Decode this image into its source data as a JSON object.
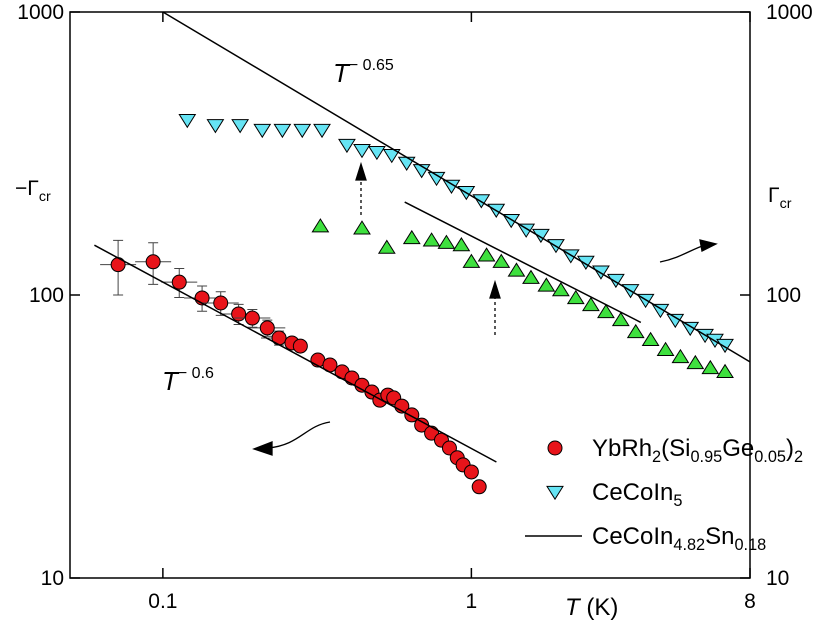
{
  "chart_data": {
    "type": "scatter",
    "log_x": true,
    "log_y": true,
    "xlabel": "T (K)",
    "ylabel": "−Γcr",
    "y2label": "Γcr",
    "xlim": [
      0.05,
      8
    ],
    "xticks": [
      0.1,
      1,
      8
    ],
    "ylim": [
      10,
      1000
    ],
    "yticks": [
      10,
      100,
      1000
    ],
    "y2lim": [
      10,
      1000
    ],
    "y2ticks": [
      10,
      100,
      1000
    ],
    "annotations": [
      {
        "base": "T",
        "exponent": "− 0.65"
      },
      {
        "base": "T",
        "exponent": "− 0.6"
      }
    ],
    "series": [
      {
        "name": "YbRh2(Si0.95Ge0.05)2",
        "color": "#e8141a",
        "marker": "circle",
        "x": [
          0.0716,
          0.093,
          0.113,
          0.134,
          0.154,
          0.176,
          0.195,
          0.218,
          0.238,
          0.262,
          0.279,
          0.318,
          0.348,
          0.381,
          0.41,
          0.442,
          0.476,
          0.505,
          0.536,
          0.56,
          0.595,
          0.641,
          0.69,
          0.743,
          0.8,
          0.849,
          0.9,
          0.94,
          1.0,
          1.06
        ],
        "values": [
          128,
          131,
          111,
          97.6,
          93.7,
          85.7,
          82.9,
          76.5,
          70.5,
          67.7,
          66,
          58.9,
          56.6,
          53.5,
          50.9,
          48,
          45.4,
          42.5,
          44.3,
          43.3,
          40.5,
          37.7,
          34.7,
          32.5,
          30.7,
          28.8,
          26.6,
          25.1,
          23.7,
          21.0
        ],
        "errors": [
          28,
          22,
          13,
          10,
          9,
          7,
          6,
          5,
          4,
          null,
          null,
          null,
          null,
          null,
          null,
          null,
          null,
          null,
          null,
          null,
          null,
          null,
          null,
          null,
          null,
          null,
          null,
          null,
          null,
          null
        ]
      },
      {
        "name": "CeCoIn5",
        "color": "#66e4f4",
        "marker": "triangle-down",
        "axis": "y2",
        "x": [
          0.12,
          0.148,
          0.178,
          0.21,
          0.244,
          0.283,
          0.328,
          0.395,
          0.442,
          0.494,
          0.552,
          0.617,
          0.69,
          0.771,
          0.862,
          0.963,
          1.077,
          1.204,
          1.346,
          1.505,
          1.68,
          1.88,
          2.1,
          2.35,
          2.63,
          2.94,
          3.28,
          3.67,
          4.1,
          4.58,
          5.12,
          5.72,
          6.16,
          6.64
        ],
        "values": [
          415,
          398,
          398,
          383,
          383,
          383,
          383,
          339,
          325,
          320,
          312,
          293,
          276,
          259,
          243,
          231,
          216,
          200,
          184,
          170,
          163,
          150,
          138,
          131,
          121,
          113,
          104,
          96,
          88.5,
          81.6,
          76.5,
          72.2,
          69.4,
          66.6
        ]
      },
      {
        "color": "#3ee03e",
        "marker": "triangle-up",
        "axis": "y2",
        "x": [
          0.324,
          0.442,
          0.532,
          0.641,
          0.743,
          0.83,
          0.928,
          1.0,
          1.12,
          1.25,
          1.4,
          1.56,
          1.75,
          1.95,
          2.18,
          2.44,
          2.73,
          3.05,
          3.41,
          3.81,
          4.26,
          4.76,
          5.32,
          5.95,
          6.64
        ],
        "values": [
          175,
          172,
          147,
          159,
          156,
          153,
          150,
          131,
          138,
          131,
          122,
          115,
          108,
          104,
          97.6,
          92.2,
          87.1,
          81.6,
          74,
          69.4,
          64,
          60.4,
          57.5,
          55.2,
          53.5
        ]
      },
      {
        "name": "CeCoIn4.82Sn0.18",
        "color": "#000000",
        "marker": "line",
        "axis": "y2",
        "x": [
          0.1,
          8,
          null,
          0.608,
          3.54,
          null,
          0.06,
          1.205
        ],
        "values": [
          1000,
          58,
          null,
          213,
          80,
          null,
          150,
          25.7
        ]
      }
    ]
  }
}
